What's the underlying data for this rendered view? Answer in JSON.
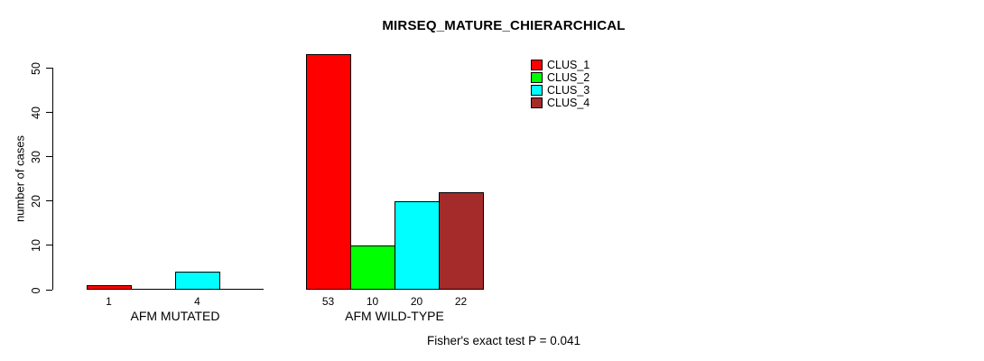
{
  "chart_data": {
    "type": "bar",
    "title": "MIRSEQ_MATURE_CHIERARCHICAL",
    "ylabel": "number of cases",
    "xlabel": "",
    "ylim": [
      0,
      53
    ],
    "yticks": [
      0,
      10,
      20,
      30,
      40,
      50
    ],
    "grid": false,
    "legend_position": "top-right",
    "categories": [
      "AFM MUTATED",
      "AFM WILD-TYPE"
    ],
    "series": [
      {
        "name": "CLUS_1",
        "color": "#FF0000",
        "values": [
          1,
          53
        ]
      },
      {
        "name": "CLUS_2",
        "color": "#00FF00",
        "values": [
          0,
          10
        ]
      },
      {
        "name": "CLUS_3",
        "color": "#00FFFF",
        "values": [
          4,
          20
        ]
      },
      {
        "name": "CLUS_4",
        "color": "#A52A2A",
        "values": [
          0,
          22
        ]
      }
    ],
    "bar_value_labels": [
      [
        "1",
        "",
        "4",
        ""
      ],
      [
        "53",
        "10",
        "20",
        "22"
      ]
    ],
    "legend": [
      {
        "label": "CLUS_1",
        "color": "#FF0000"
      },
      {
        "label": "CLUS_2",
        "color": "#00FF00"
      },
      {
        "label": "CLUS_3",
        "color": "#00FFFF"
      },
      {
        "label": "CLUS_4",
        "color": "#A52A2A"
      }
    ],
    "annotation": "Fisher's exact test P = 0.041"
  }
}
